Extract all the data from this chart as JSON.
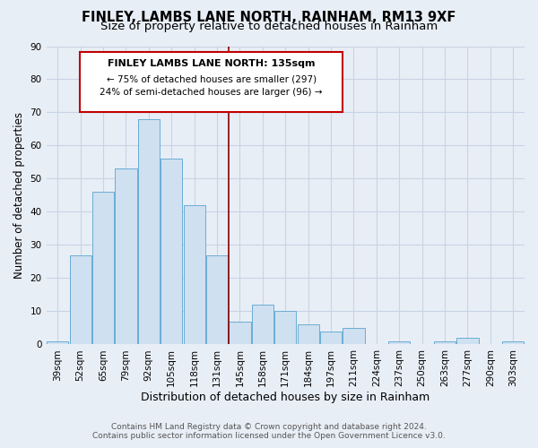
{
  "title": "FINLEY, LAMBS LANE NORTH, RAINHAM, RM13 9XF",
  "subtitle": "Size of property relative to detached houses in Rainham",
  "xlabel": "Distribution of detached houses by size in Rainham",
  "ylabel": "Number of detached properties",
  "bar_labels": [
    "39sqm",
    "52sqm",
    "65sqm",
    "79sqm",
    "92sqm",
    "105sqm",
    "118sqm",
    "131sqm",
    "145sqm",
    "158sqm",
    "171sqm",
    "184sqm",
    "197sqm",
    "211sqm",
    "224sqm",
    "237sqm",
    "250sqm",
    "263sqm",
    "277sqm",
    "290sqm",
    "303sqm"
  ],
  "bar_values": [
    1,
    27,
    46,
    53,
    68,
    56,
    42,
    27,
    7,
    12,
    10,
    6,
    4,
    5,
    0,
    1,
    0,
    1,
    2,
    0,
    1
  ],
  "bar_color": "#cfe0f0",
  "bar_edge_color": "#6aadd5",
  "vline_x": 7.5,
  "vline_color": "#8b0000",
  "annotation_title": "FINLEY LAMBS LANE NORTH: 135sqm",
  "annotation_line1": "← 75% of detached houses are smaller (297)",
  "annotation_line2": "24% of semi-detached houses are larger (96) →",
  "annotation_box_color": "#ffffff",
  "annotation_box_edge": "#c00000",
  "ylim": [
    0,
    90
  ],
  "yticks": [
    0,
    10,
    20,
    30,
    40,
    50,
    60,
    70,
    80,
    90
  ],
  "background_color": "#e8eef6",
  "grid_color": "#c8d4e4",
  "footer_line1": "Contains HM Land Registry data © Crown copyright and database right 2024.",
  "footer_line2": "Contains public sector information licensed under the Open Government Licence v3.0.",
  "title_fontsize": 10.5,
  "subtitle_fontsize": 9.5,
  "xlabel_fontsize": 9,
  "ylabel_fontsize": 8.5,
  "tick_fontsize": 7.5,
  "footer_fontsize": 6.5,
  "ann_fontsize_title": 8,
  "ann_fontsize_body": 7.5
}
